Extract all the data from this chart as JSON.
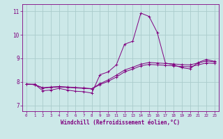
{
  "xlabel": "Windchill (Refroidissement éolien,°C)",
  "background_color": "#cce8e8",
  "grid_color": "#aacccc",
  "line_color": "#800080",
  "xlim": [
    -0.5,
    23.5
  ],
  "ylim": [
    6.75,
    11.3
  ],
  "xticks": [
    0,
    1,
    2,
    3,
    4,
    5,
    6,
    7,
    8,
    9,
    10,
    11,
    12,
    13,
    14,
    15,
    16,
    17,
    18,
    19,
    20,
    21,
    22,
    23
  ],
  "yticks": [
    7,
    8,
    9,
    10,
    11
  ],
  "hours": [
    0,
    1,
    2,
    3,
    4,
    5,
    6,
    7,
    8,
    9,
    10,
    11,
    12,
    13,
    14,
    15,
    16,
    17,
    18,
    19,
    20,
    21,
    22,
    23
  ],
  "line1": [
    7.9,
    7.9,
    7.62,
    7.65,
    7.72,
    7.65,
    7.6,
    7.58,
    7.52,
    8.3,
    8.42,
    8.72,
    9.6,
    9.72,
    10.92,
    10.78,
    10.1,
    8.8,
    8.72,
    8.6,
    8.55,
    8.82,
    8.95,
    8.87
  ],
  "line2": [
    7.9,
    7.88,
    7.75,
    7.78,
    7.8,
    7.78,
    7.76,
    7.74,
    7.71,
    7.92,
    8.08,
    8.28,
    8.5,
    8.62,
    8.75,
    8.82,
    8.8,
    8.78,
    8.76,
    8.73,
    8.72,
    8.8,
    8.88,
    8.85
  ],
  "line3": [
    7.9,
    7.88,
    7.73,
    7.76,
    7.78,
    7.76,
    7.74,
    7.72,
    7.7,
    7.88,
    8.02,
    8.2,
    8.42,
    8.54,
    8.68,
    8.74,
    8.72,
    8.7,
    8.68,
    8.65,
    8.64,
    8.72,
    8.8,
    8.78
  ]
}
